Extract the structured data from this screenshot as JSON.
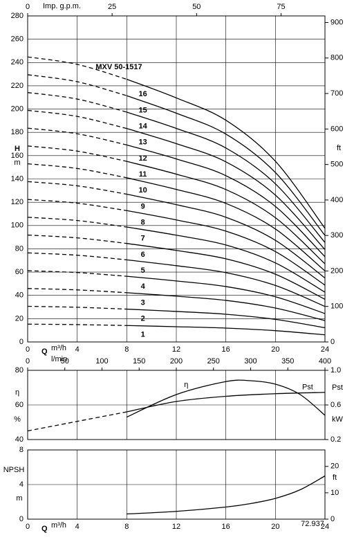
{
  "chart_data": [
    {
      "type": "line",
      "title": "MXV 50-1517",
      "x": [
        0,
        4,
        8,
        12,
        16,
        20,
        24
      ],
      "xlim": [
        0,
        24
      ],
      "xticks": [
        0,
        4,
        8,
        12,
        16,
        20,
        24
      ],
      "x_label": "Q",
      "x_unit": "m³/h",
      "x2_label": "Imp. g.p.m.",
      "x2lim": [
        0,
        88
      ],
      "x2ticks": [
        0,
        25,
        50,
        75
      ],
      "y_label": "H",
      "y_unit": "m",
      "ylim": [
        0,
        280
      ],
      "yticks": [
        0,
        20,
        40,
        60,
        80,
        100,
        120,
        140,
        160,
        180,
        200,
        220,
        240,
        260,
        280
      ],
      "y2_label": "ft",
      "y2lim": [
        0,
        918.6
      ],
      "y2ticks": [
        0,
        100,
        200,
        300,
        400,
        500,
        600,
        700,
        800,
        900
      ],
      "dashed_to_x": 8,
      "color": "#000000",
      "grid": true,
      "series": [
        {
          "name": "1",
          "values": [
            15.3,
            14.9,
            14.1,
            13.1,
            11.9,
            9.7,
            6.1
          ]
        },
        {
          "name": "2",
          "values": [
            30.6,
            29.8,
            28.2,
            26.2,
            23.8,
            19.4,
            12.2
          ]
        },
        {
          "name": "3",
          "values": [
            45.9,
            44.7,
            42.3,
            39.3,
            35.7,
            29.1,
            18.3
          ]
        },
        {
          "name": "4",
          "values": [
            61.2,
            59.6,
            56.4,
            52.4,
            47.6,
            38.8,
            24.4
          ]
        },
        {
          "name": "5",
          "values": [
            76.5,
            74.5,
            70.5,
            65.5,
            59.5,
            48.5,
            30.5
          ]
        },
        {
          "name": "6",
          "values": [
            91.8,
            89.4,
            84.6,
            78.6,
            71.4,
            58.2,
            36.6
          ]
        },
        {
          "name": "7",
          "values": [
            107.1,
            104.3,
            98.7,
            91.7,
            83.3,
            67.9,
            42.7
          ]
        },
        {
          "name": "8",
          "values": [
            122.4,
            119.2,
            112.8,
            104.8,
            95.2,
            77.6,
            48.8
          ]
        },
        {
          "name": "9",
          "values": [
            137.7,
            134.1,
            126.9,
            117.9,
            107.1,
            87.3,
            54.9
          ]
        },
        {
          "name": "10",
          "values": [
            153,
            149,
            141,
            131,
            119,
            97,
            61
          ]
        },
        {
          "name": "11",
          "values": [
            168.3,
            163.9,
            155.1,
            144.1,
            130.9,
            106.7,
            67.1
          ]
        },
        {
          "name": "12",
          "values": [
            183.6,
            178.8,
            169.2,
            157.2,
            142.8,
            116.4,
            73.2
          ]
        },
        {
          "name": "13",
          "values": [
            198.9,
            193.7,
            183.3,
            170.3,
            154.7,
            126.1,
            79.3
          ]
        },
        {
          "name": "14",
          "values": [
            214.2,
            208.6,
            197.4,
            183.4,
            166.6,
            135.8,
            85.4
          ]
        },
        {
          "name": "15",
          "values": [
            229.5,
            223.5,
            211.5,
            196.5,
            178.5,
            145.5,
            91.5
          ]
        },
        {
          "name": "16",
          "values": [
            244.8,
            238.4,
            225.6,
            209.6,
            190.4,
            155.2,
            97.6
          ]
        }
      ]
    },
    {
      "type": "line",
      "xlim": [
        0,
        24
      ],
      "x2_label": "l/min",
      "x2lim": [
        0,
        400
      ],
      "x2ticks": [
        0,
        50,
        100,
        150,
        200,
        250,
        300,
        350,
        400
      ],
      "y_label": "η",
      "y_unit": "%",
      "ylim": [
        40,
        80
      ],
      "yticks": [
        40,
        60,
        80
      ],
      "y2_label": "Pst",
      "y2_unit": "kW",
      "y2lim": [
        0.2,
        1.0
      ],
      "y2ticks": [
        0.2,
        0.6,
        {
          "value": 1.0,
          "label": "1.0"
        }
      ],
      "dashed_to_x": 8,
      "color": "#000000",
      "grid": true,
      "series": [
        {
          "name": "η",
          "x": [
            8,
            12,
            16,
            18,
            20,
            22,
            24
          ],
          "values": [
            53,
            66,
            73.5,
            74,
            72,
            66,
            54
          ]
        },
        {
          "name": "Pst",
          "axis": "y2",
          "x": [
            0,
            4,
            8,
            12,
            16,
            20,
            24
          ],
          "values": [
            0.3,
            0.41,
            0.52,
            0.64,
            0.7,
            0.73,
            0.745
          ]
        }
      ]
    },
    {
      "type": "line",
      "x": [
        8,
        12,
        16,
        18,
        20,
        22,
        24
      ],
      "values": [
        0.6,
        0.9,
        1.4,
        1.8,
        2.4,
        3.4,
        5.0
      ],
      "xlim": [
        0,
        24
      ],
      "xticks": [
        0,
        4,
        8,
        12,
        16,
        20,
        24
      ],
      "x_label": "Q",
      "x_unit": "m³/h",
      "y_label": "NPSH",
      "y_unit": "m",
      "ylim": [
        0,
        8
      ],
      "yticks": [
        0,
        4,
        8
      ],
      "y2_label": "ft",
      "y2lim": [
        0,
        26.25
      ],
      "y2ticks": [
        0,
        10,
        20
      ],
      "color": "#000000",
      "grid": true,
      "annotation": "72.937"
    }
  ]
}
